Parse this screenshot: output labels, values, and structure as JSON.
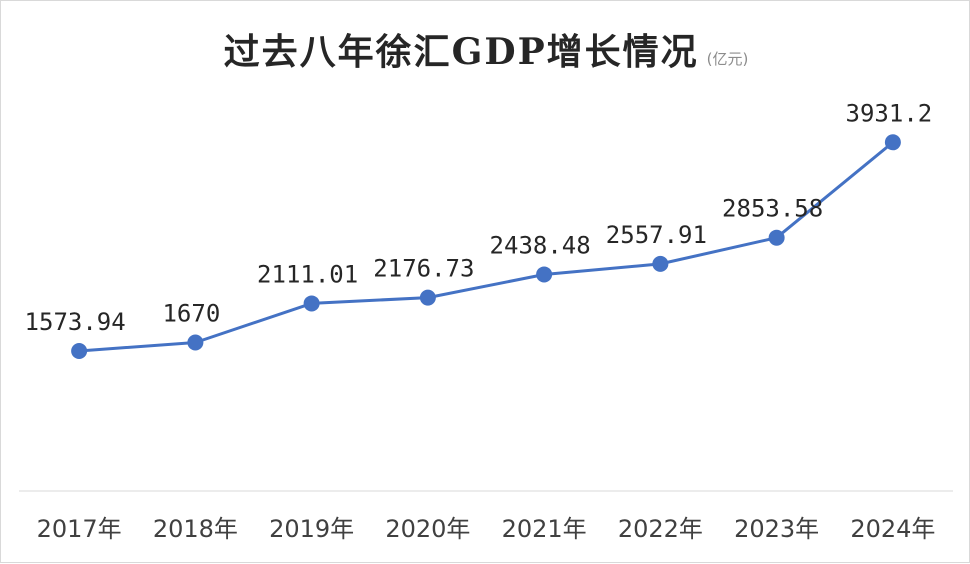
{
  "chart_data": {
    "type": "line",
    "title": "过去八年徐汇GDP增长情况",
    "subtitle": "(亿元)",
    "categories": [
      "2017年",
      "2018年",
      "2019年",
      "2020年",
      "2021年",
      "2022年",
      "2023年",
      "2024年"
    ],
    "values": [
      1573.94,
      1670,
      2111.01,
      2176.73,
      2438.48,
      2557.91,
      2853.58,
      3931.2
    ],
    "data_labels": [
      "1573.94",
      "1670",
      "2111.01",
      "2176.73",
      "2438.48",
      "2557.91",
      "2853.58",
      "3931.2"
    ],
    "ylim": [
      0,
      4500
    ],
    "grid": false,
    "legend": "none",
    "line_color": "#4472C4"
  }
}
